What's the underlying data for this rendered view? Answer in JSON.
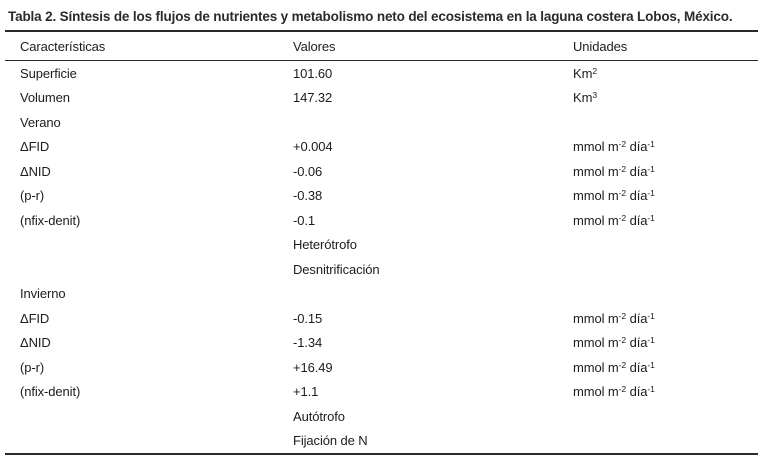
{
  "title": "Tabla 2. Síntesis de los flujos de nutrientes y metabolismo neto del ecosistema en la laguna costera Lobos, México.",
  "table": {
    "headers": {
      "caracteristicas": "Características",
      "valores": "Valores",
      "unidades": "Unidades"
    },
    "rows": [
      {
        "caracteristica": "Superficie",
        "valor": "101.60",
        "unidad": "Km^{2}"
      },
      {
        "caracteristica": "Volumen",
        "valor": "147.32",
        "unidad": "Km^{3}"
      },
      {
        "caracteristica": "Verano",
        "valor": "",
        "unidad": ""
      },
      {
        "caracteristica": "ΔFID",
        "valor": "+0.004",
        "unidad": "mmol m^{-2} día^{-1}"
      },
      {
        "caracteristica": "ΔNID",
        "valor": "-0.06",
        "unidad": "mmol m^{-2} día^{-1}"
      },
      {
        "caracteristica": "(p-r)",
        "valor": "-0.38",
        "unidad": "mmol m^{-2} día^{-1}"
      },
      {
        "caracteristica": "(nfix-denit)",
        "valor": "-0.1",
        "unidad": "mmol m^{-2} día^{-1}"
      },
      {
        "caracteristica": "",
        "valor": "Heterótrofo",
        "unidad": ""
      },
      {
        "caracteristica": "",
        "valor": "Desnitrificación",
        "unidad": ""
      },
      {
        "caracteristica": "Invierno",
        "valor": "",
        "unidad": ""
      },
      {
        "caracteristica": "ΔFID",
        "valor": "-0.15",
        "unidad": "mmol m^{-2} día^{-1}"
      },
      {
        "caracteristica": "ΔNID",
        "valor": "-1.34",
        "unidad": "mmol m^{-2} día^{-1}"
      },
      {
        "caracteristica": "(p-r)",
        "valor": "+16.49",
        "unidad": "mmol m^{-2} día^{-1}"
      },
      {
        "caracteristica": "(nfix-denit)",
        "valor": "+1.1",
        "unidad": "mmol m^{-2} día^{-1}"
      },
      {
        "caracteristica": "",
        "valor": "Autótrofo",
        "unidad": ""
      },
      {
        "caracteristica": "",
        "valor": "Fijación de N",
        "unidad": ""
      }
    ]
  }
}
